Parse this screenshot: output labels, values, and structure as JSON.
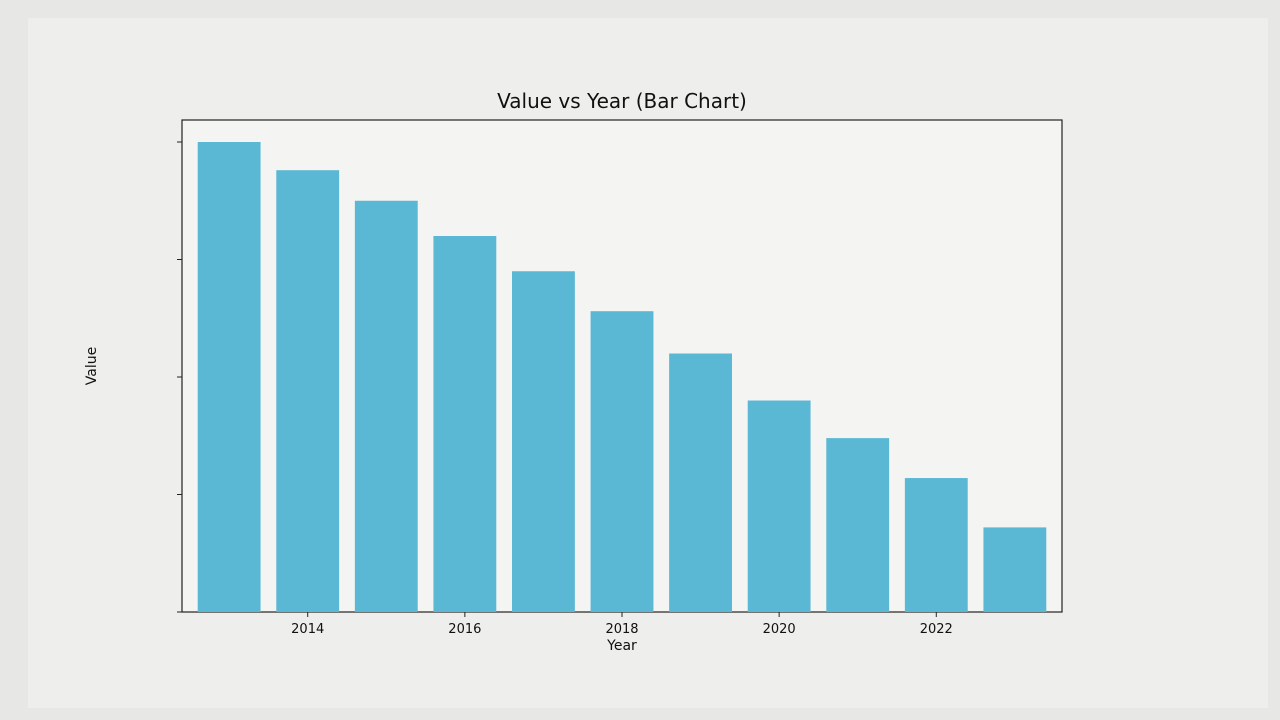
{
  "chart_data": {
    "type": "bar",
    "title": "Value vs Year (Bar Chart)",
    "xlabel": "Year",
    "ylabel": "Value",
    "categories": [
      2013,
      2014,
      2015,
      2016,
      2017,
      2018,
      2019,
      2020,
      2021,
      2022,
      2023
    ],
    "values": [
      1000,
      940,
      875,
      800,
      725,
      640,
      550,
      450,
      370,
      285,
      180
    ],
    "ylim": [
      0,
      1000
    ],
    "x_tick_labels": [
      "2014",
      "2016",
      "2018",
      "2020",
      "2022"
    ],
    "bar_color": "#5bb8d4",
    "grid": false
  }
}
